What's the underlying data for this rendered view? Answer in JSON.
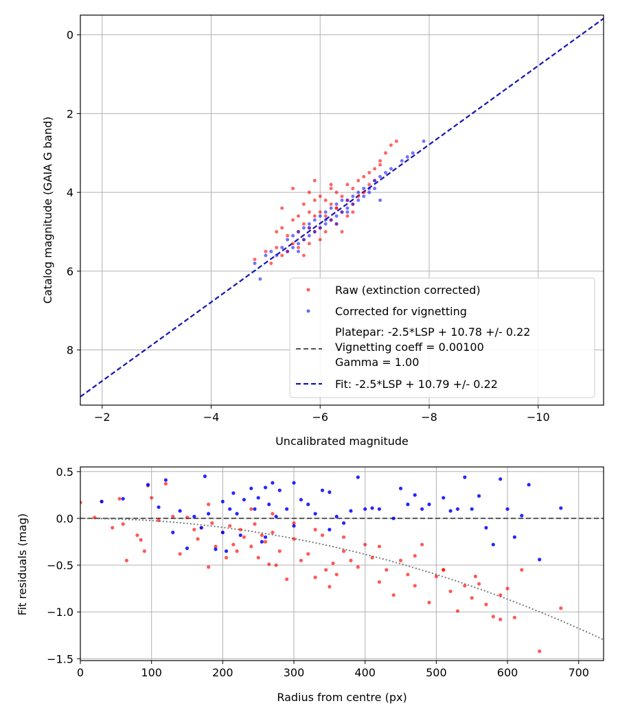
{
  "chart_data": [
    {
      "type": "scatter",
      "xlabel": "Uncalibrated magnitude",
      "ylabel": "Catalog magnitude (GAIA G band)",
      "xlim": [
        -1.6,
        -11.2
      ],
      "ylim": [
        9.4,
        -0.5
      ],
      "x_inverted": true,
      "y_inverted": true,
      "xticks": [
        -2,
        -4,
        -6,
        -8,
        -10
      ],
      "xtick_labels": [
        "−2",
        "−4",
        "−6",
        "−8",
        "−10"
      ],
      "yticks": [
        0,
        2,
        4,
        6,
        8
      ],
      "ytick_labels": [
        "0",
        "2",
        "4",
        "6",
        "8"
      ],
      "grid": true,
      "legend_position": "lower-right",
      "colors": {
        "raw": "#ff0000",
        "corrected": "#0000ff",
        "platepar": "#555555",
        "fit": "#0000cc"
      },
      "series": [
        {
          "name": "Raw (extinction corrected)",
          "kind": "points",
          "color": "#ff0000",
          "x": [
            -4.8,
            -5.0,
            -5.1,
            -5.2,
            -5.3,
            -5.3,
            -5.4,
            -5.4,
            -5.5,
            -5.5,
            -5.6,
            -5.6,
            -5.6,
            -5.7,
            -5.7,
            -5.7,
            -5.8,
            -5.8,
            -5.8,
            -5.9,
            -5.9,
            -5.9,
            -6.0,
            -6.0,
            -6.0,
            -6.1,
            -6.1,
            -6.1,
            -6.2,
            -6.2,
            -6.2,
            -6.3,
            -6.3,
            -6.3,
            -6.4,
            -6.4,
            -6.5,
            -6.5,
            -6.5,
            -6.6,
            -6.6,
            -6.7,
            -6.7,
            -6.8,
            -6.8,
            -6.9,
            -7.0,
            -7.0,
            -7.1,
            -7.2,
            -7.3,
            -7.4,
            -5.5,
            -5.9,
            -6.2,
            -5.3,
            -6.0,
            -6.4,
            -5.7,
            -6.6,
            -5.2,
            -6.9,
            -7.1,
            -5.8,
            -6.3
          ],
          "y": [
            5.7,
            5.5,
            5.8,
            5.4,
            5.6,
            4.9,
            5.1,
            5.5,
            4.7,
            5.3,
            4.6,
            5.0,
            5.4,
            4.3,
            4.8,
            5.2,
            4.5,
            4.9,
            5.3,
            4.2,
            4.6,
            5.0,
            4.1,
            4.5,
            4.9,
            4.2,
            4.6,
            5.0,
            3.9,
            4.3,
            4.7,
            4.0,
            4.4,
            4.8,
            4.1,
            4.5,
            3.8,
            4.2,
            4.6,
            3.9,
            4.3,
            3.7,
            4.1,
            3.6,
            4.0,
            3.8,
            3.4,
            3.7,
            3.2,
            3.0,
            2.8,
            2.7,
            3.9,
            3.7,
            3.8,
            4.4,
            5.2,
            5.0,
            5.6,
            4.5,
            5.0,
            3.5,
            3.3,
            4.0,
            4.4
          ]
        },
        {
          "name": "Corrected for vignetting",
          "kind": "points",
          "color": "#0000ff",
          "x": [
            -4.8,
            -5.0,
            -5.1,
            -5.2,
            -5.3,
            -5.4,
            -5.5,
            -5.5,
            -5.6,
            -5.6,
            -5.7,
            -5.7,
            -5.8,
            -5.8,
            -5.9,
            -5.9,
            -6.0,
            -6.0,
            -6.1,
            -6.1,
            -6.2,
            -6.2,
            -6.3,
            -6.3,
            -6.4,
            -6.4,
            -6.5,
            -6.5,
            -6.6,
            -6.6,
            -6.7,
            -6.7,
            -6.8,
            -6.8,
            -6.9,
            -7.0,
            -7.0,
            -7.1,
            -7.2,
            -7.3,
            -7.5,
            -7.6,
            -7.7,
            -7.9,
            -5.4,
            -5.8,
            -6.1,
            -6.5,
            -6.9,
            -5.6,
            -6.3,
            -7.1,
            -4.9
          ],
          "y": [
            5.8,
            5.6,
            5.5,
            5.6,
            5.4,
            5.5,
            5.1,
            5.4,
            5.0,
            5.3,
            4.9,
            5.2,
            4.8,
            5.1,
            4.7,
            5.0,
            4.6,
            4.9,
            4.5,
            4.8,
            4.4,
            4.7,
            4.3,
            4.6,
            4.2,
            4.5,
            4.2,
            4.4,
            4.1,
            4.3,
            4.0,
            4.2,
            3.9,
            4.1,
            3.9,
            3.7,
            3.9,
            3.6,
            3.5,
            3.4,
            3.2,
            3.1,
            3.0,
            2.7,
            5.2,
            4.9,
            4.7,
            4.5,
            4.0,
            5.5,
            4.8,
            4.2,
            6.2
          ]
        },
        {
          "name": "Platepar: -2.5*LSP + 10.78 +/- 0.22\nVignetting coeff = 0.00100\nGamma = 1.00",
          "kind": "line",
          "style": "dashed",
          "color": "#555555",
          "slope": 1.0,
          "intercept": 10.78
        },
        {
          "name": "Fit: -2.5*LSP + 10.79 +/- 0.22",
          "kind": "line",
          "style": "dashed",
          "color": "#0000cc",
          "slope": 1.0,
          "intercept": 10.79
        }
      ]
    },
    {
      "type": "scatter",
      "xlabel": "Radius from centre (px)",
      "ylabel": "Fit residuals (mag)",
      "xlim": [
        0,
        735
      ],
      "ylim": [
        -1.52,
        0.55
      ],
      "xticks": [
        0,
        100,
        200,
        300,
        400,
        500,
        600,
        700
      ],
      "xtick_labels": [
        "0",
        "100",
        "200",
        "300",
        "400",
        "500",
        "600",
        "700"
      ],
      "yticks": [
        0.5,
        0.0,
        -0.5,
        -1.0,
        -1.5
      ],
      "ytick_labels": [
        "0.5",
        "0.0",
        "−0.5",
        "−1.0",
        "−1.5"
      ],
      "grid": true,
      "colors": {
        "raw": "#ff0000",
        "corrected": "#0000ff",
        "zero": "#555555",
        "model": "#777777"
      },
      "series": [
        {
          "kind": "points",
          "color": "#ff0000",
          "x": [
            0,
            20,
            30,
            45,
            55,
            60,
            65,
            80,
            85,
            90,
            95,
            100,
            110,
            120,
            130,
            140,
            150,
            160,
            165,
            170,
            180,
            185,
            190,
            200,
            205,
            210,
            215,
            220,
            225,
            230,
            240,
            245,
            250,
            255,
            260,
            265,
            270,
            275,
            280,
            290,
            300,
            310,
            320,
            330,
            340,
            345,
            350,
            355,
            360,
            370,
            380,
            390,
            400,
            410,
            420,
            430,
            440,
            450,
            460,
            470,
            480,
            490,
            500,
            510,
            520,
            530,
            540,
            550,
            560,
            570,
            580,
            590,
            600,
            610,
            620,
            645,
            675,
            180,
            240,
            270,
            300,
            330,
            370,
            420,
            470,
            510,
            555,
            590
          ],
          "y": [
            0.17,
            0.01,
            0.18,
            -0.1,
            0.21,
            -0.06,
            -0.45,
            -0.18,
            -0.23,
            -0.35,
            0.35,
            0.22,
            -0.02,
            0.37,
            0.02,
            -0.38,
            0.01,
            -0.12,
            -0.22,
            -0.1,
            -0.52,
            -0.05,
            -0.3,
            -0.15,
            -0.42,
            -0.08,
            -0.28,
            -0.35,
            -0.12,
            -0.2,
            -0.3,
            -0.06,
            -0.42,
            -0.18,
            -0.25,
            -0.49,
            -0.15,
            -0.5,
            -0.35,
            -0.65,
            -0.22,
            -0.45,
            -0.38,
            -0.63,
            -0.18,
            -0.55,
            -0.73,
            -0.48,
            -0.6,
            -0.35,
            -0.45,
            -0.52,
            -0.28,
            -0.42,
            -0.68,
            -0.55,
            -0.82,
            -0.45,
            -0.6,
            -0.72,
            -0.28,
            -0.9,
            -0.62,
            -0.55,
            -0.78,
            -0.99,
            -0.72,
            -0.85,
            -0.7,
            -0.92,
            -1.05,
            -1.08,
            -0.75,
            -1.06,
            -0.55,
            -1.42,
            -0.96,
            0.15,
            0.1,
            0.05,
            -0.05,
            -0.12,
            -0.2,
            -0.3,
            -0.4,
            -0.55,
            -0.62,
            -0.82
          ]
        },
        {
          "kind": "points",
          "color": "#0000ff",
          "x": [
            30,
            60,
            95,
            110,
            120,
            130,
            140,
            150,
            160,
            170,
            175,
            180,
            190,
            200,
            205,
            210,
            215,
            220,
            225,
            230,
            240,
            245,
            250,
            255,
            260,
            265,
            270,
            275,
            280,
            290,
            300,
            310,
            320,
            330,
            340,
            350,
            360,
            370,
            380,
            390,
            400,
            410,
            420,
            440,
            450,
            460,
            470,
            480,
            490,
            510,
            520,
            530,
            540,
            550,
            560,
            570,
            580,
            590,
            600,
            610,
            620,
            630,
            645,
            675,
            200,
            260,
            300,
            350
          ],
          "y": [
            0.18,
            0.21,
            0.36,
            0.12,
            0.41,
            -0.15,
            0.08,
            -0.32,
            0.02,
            -0.1,
            0.45,
            0.05,
            -0.33,
            0.18,
            -0.35,
            0.1,
            0.27,
            0.05,
            -0.18,
            0.2,
            0.32,
            0.1,
            0.22,
            -0.25,
            0.33,
            0.15,
            0.38,
            0.02,
            0.3,
            0.1,
            0.38,
            0.2,
            0.15,
            0.05,
            0.3,
            0.28,
            0.02,
            -0.05,
            0.08,
            0.44,
            0.1,
            0.11,
            0.1,
            0.0,
            0.32,
            0.15,
            0.25,
            0.1,
            0.15,
            0.22,
            0.08,
            0.1,
            0.44,
            0.1,
            0.24,
            -0.1,
            -0.28,
            0.42,
            0.1,
            -0.2,
            0.03,
            0.36,
            -0.44,
            0.11,
            -0.15,
            -0.2,
            -0.08,
            -0.12
          ]
        },
        {
          "kind": "hline",
          "style": "dashed",
          "color": "#555555",
          "y": 0.0
        },
        {
          "kind": "curve",
          "style": "dotted",
          "color": "#777777",
          "x": [
            0,
            735
          ],
          "coeff": -2.4e-06
        }
      ]
    }
  ]
}
